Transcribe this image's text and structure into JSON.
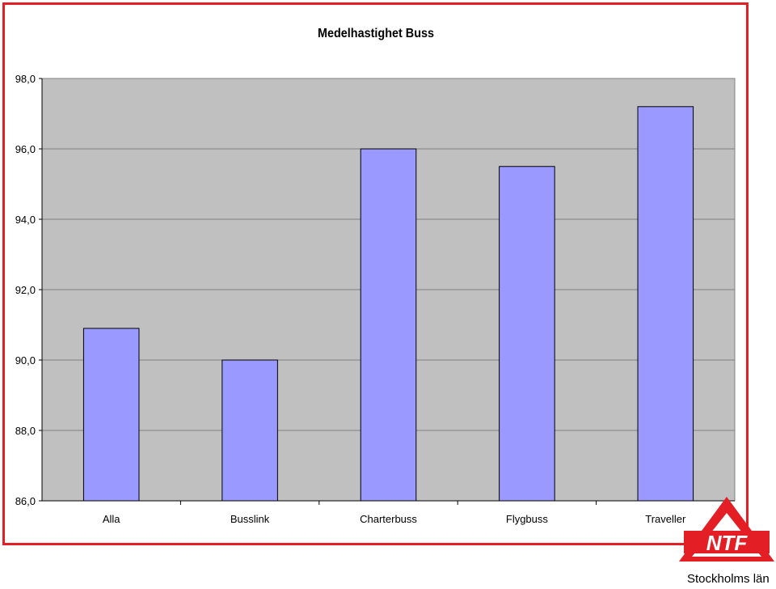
{
  "chart_data": {
    "type": "bar",
    "title": "Medelhastighet Buss",
    "categories": [
      "Alla",
      "Busslink",
      "Charterbuss",
      "Flygbuss",
      "Traveller"
    ],
    "values": [
      90.9,
      90.0,
      96.0,
      95.5,
      97.2
    ],
    "ylim": [
      86.0,
      98.0
    ],
    "yticks": [
      "86,0",
      "88,0",
      "90,0",
      "92,0",
      "94,0",
      "96,0",
      "98,0"
    ],
    "ytick_values": [
      86,
      88,
      90,
      92,
      94,
      96,
      98
    ],
    "grid": true,
    "legend": "none",
    "colors": {
      "bar": "#9999ff",
      "plot_bg": "#c0c0c0",
      "frame": "#e31e24"
    }
  },
  "logo": {
    "text": "NTF",
    "caption": "Stockholms län",
    "color": "#e31e24"
  }
}
